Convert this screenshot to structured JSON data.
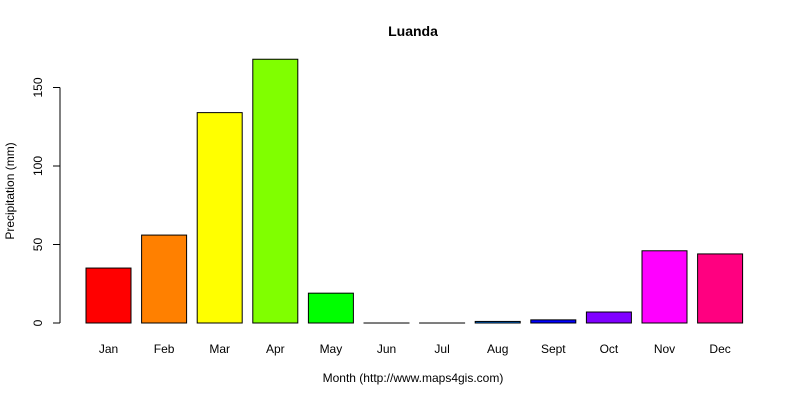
{
  "chart_data": {
    "type": "bar",
    "title": "Luanda",
    "xlabel": "Month (http://www.maps4gis.com)",
    "ylabel": "Precipitation (mm)",
    "categories": [
      "Jan",
      "Feb",
      "Mar",
      "Apr",
      "May",
      "Jun",
      "Jul",
      "Aug",
      "Sept",
      "Oct",
      "Nov",
      "Dec"
    ],
    "values": [
      35,
      56,
      134,
      168,
      19,
      0,
      0,
      1,
      2,
      7,
      46,
      44
    ],
    "colors": [
      "#ff0000",
      "#ff8000",
      "#ffff00",
      "#80ff00",
      "#00ff00",
      "#00ff80",
      "#00ffff",
      "#0080ff",
      "#0000ff",
      "#8000ff",
      "#ff00ff",
      "#ff0080"
    ],
    "ylim": [
      0,
      170
    ],
    "yticks": [
      0,
      50,
      100,
      150
    ],
    "grid": false,
    "legend": "none"
  }
}
